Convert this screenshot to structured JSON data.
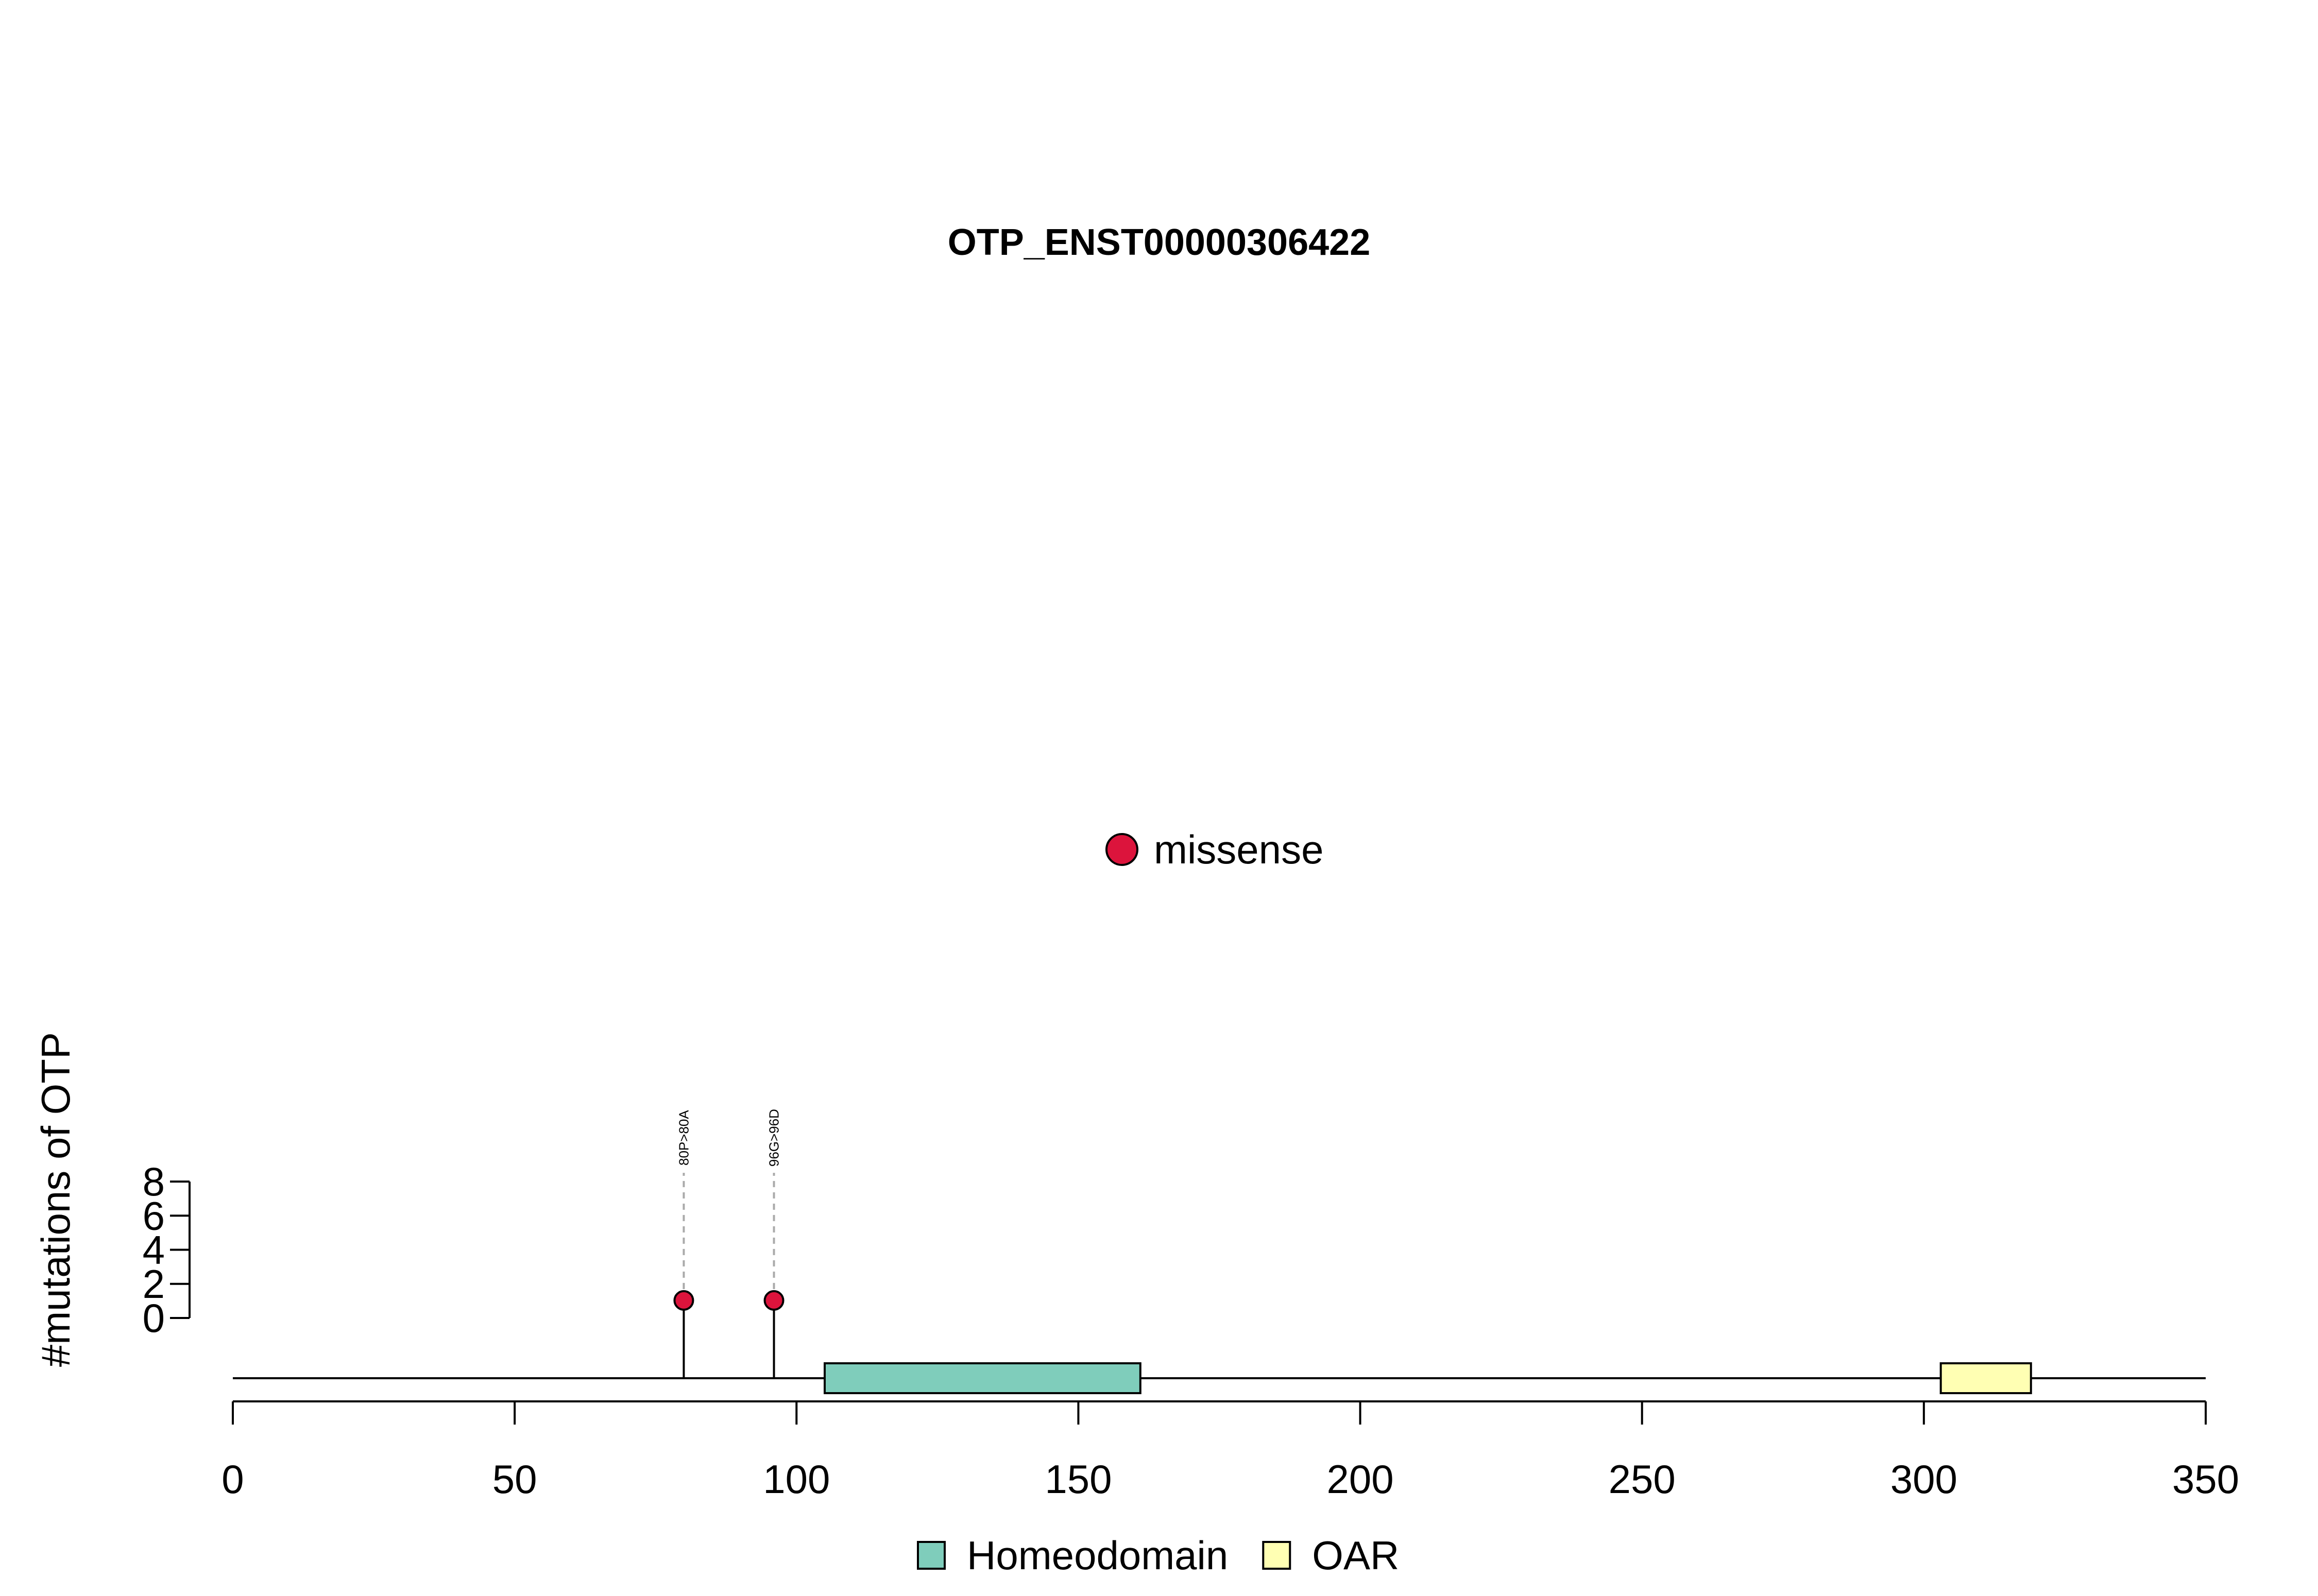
{
  "chart_data": {
    "type": "lollipop",
    "title": "OTP_ENST00000306422",
    "ylabel": "#mutations of OTP",
    "xlim": [
      0,
      350
    ],
    "x_ticks": [
      0,
      50,
      100,
      150,
      200,
      250,
      300,
      350
    ],
    "ylim": [
      0,
      8
    ],
    "y_ticks": [
      0,
      2,
      4,
      6,
      8
    ],
    "mutation_legend": [
      {
        "label": "missense",
        "color": "#DC143C"
      }
    ],
    "mutations": [
      {
        "position": 80,
        "label": "80P>80A",
        "count": 1,
        "type": "missense",
        "color": "#DC143C"
      },
      {
        "position": 96,
        "label": "96G>96D",
        "count": 1,
        "type": "missense",
        "color": "#DC143C"
      }
    ],
    "domains": [
      {
        "name": "Homeodomain",
        "start": 105,
        "end": 161,
        "color": "#7FCDBB"
      },
      {
        "name": "OAR",
        "start": 303,
        "end": 319,
        "color": "#FFFFB3"
      }
    ]
  }
}
